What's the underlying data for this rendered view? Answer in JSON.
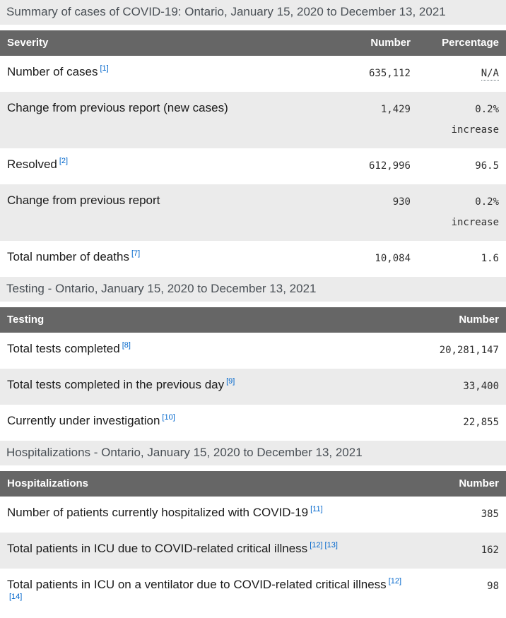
{
  "colors": {
    "header_bg": "#666666",
    "caption_bg": "#ebebeb",
    "stripe_bg": "#ebebeb",
    "link_blue": "#0066cc",
    "caption_text": "#4a5056"
  },
  "summary_table": {
    "title": "Summary of cases of COVID-19: Ontario, January 15, 2020 to December 13, 2021",
    "columns": [
      "Severity",
      "Number",
      "Percentage"
    ],
    "rows": [
      {
        "label": "Number of cases",
        "footnotes": [
          "[1]"
        ],
        "number": "635,112",
        "percentage": "N/A",
        "na": true
      },
      {
        "label": "Change from previous report (new cases)",
        "footnotes": [],
        "number": "1,429",
        "percentage": "0.2%",
        "percentage_note": "increase"
      },
      {
        "label": "Resolved",
        "footnotes": [
          "[2]"
        ],
        "number": "612,996",
        "percentage": "96.5"
      },
      {
        "label": "Change from previous report",
        "footnotes": [],
        "number": "930",
        "percentage": "0.2%",
        "percentage_note": "increase"
      },
      {
        "label": "Total number of deaths",
        "footnotes": [
          "[7]"
        ],
        "number": "10,084",
        "percentage": "1.6"
      }
    ]
  },
  "testing_table": {
    "title": "Testing - Ontario, January 15, 2020 to December 13, 2021",
    "columns": [
      "Testing",
      "Number"
    ],
    "rows": [
      {
        "label": "Total tests completed",
        "footnotes": [
          "[8]"
        ],
        "number": "20,281,147"
      },
      {
        "label": "Total tests completed in the previous day",
        "footnotes": [
          "[9]"
        ],
        "number": "33,400"
      },
      {
        "label": "Currently under investigation",
        "footnotes": [
          "[10]"
        ],
        "number": "22,855"
      }
    ]
  },
  "hospitalizations_table": {
    "title": "Hospitalizations - Ontario, January 15, 2020 to December 13, 2021",
    "columns": [
      "Hospitalizations",
      "Number"
    ],
    "rows": [
      {
        "label": "Number of patients currently hospitalized with COVID-19",
        "footnotes": [
          "[11]"
        ],
        "number": "385"
      },
      {
        "label": "Total patients in ICU due to COVID-related critical illness",
        "footnotes": [
          "[12]",
          "[13]"
        ],
        "number": "162"
      },
      {
        "label": "Total patients in ICU on a ventilator due to COVID-related critical illness",
        "footnotes": [
          "[12]",
          "[14]"
        ],
        "number": "98"
      }
    ]
  }
}
